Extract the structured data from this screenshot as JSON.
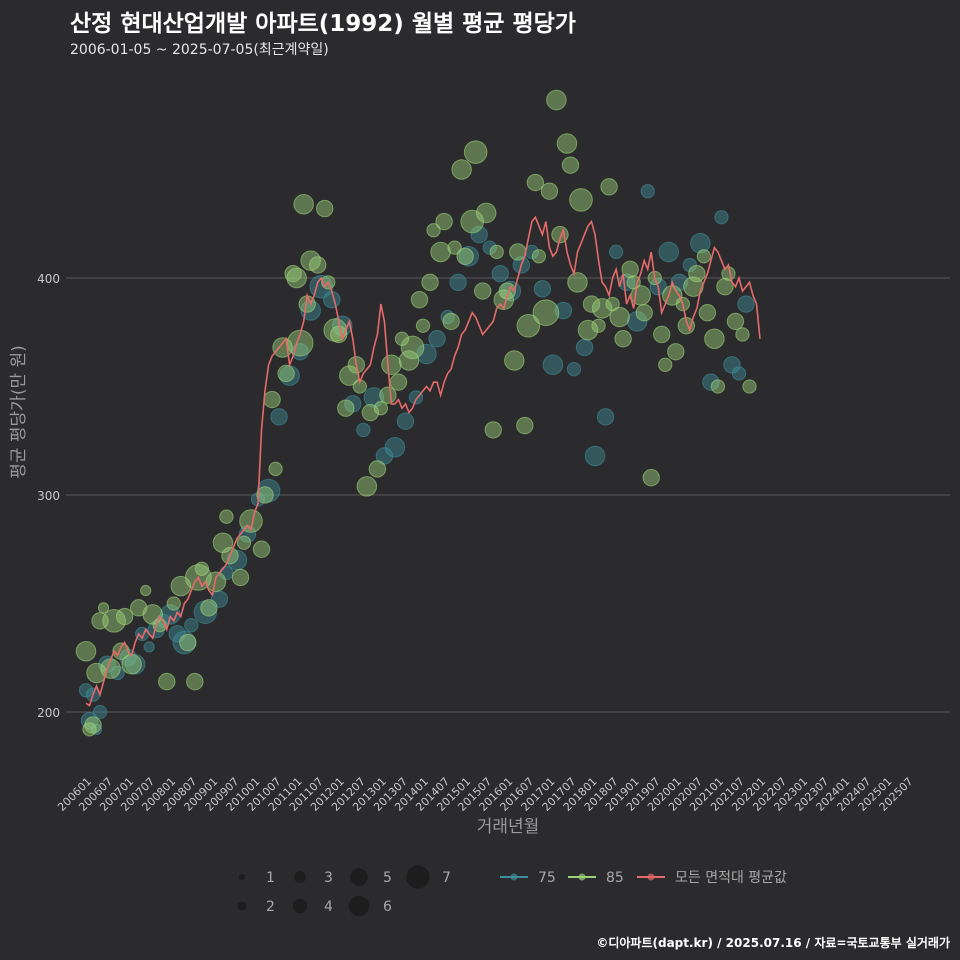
{
  "title": "산정 현대산업개발 아파트(1992) 월별 평균 평당가",
  "subtitle": "2006-01-05 ~ 2025-07-05(최근계약일)",
  "footer": "©디아파트(dapt.kr) / 2025.07.16 / 자료=국토교통부 실거래가",
  "colors": {
    "background": "#2b2b2d",
    "grid": "#5a5a5a",
    "series_75": "#3d8e9a",
    "series_85": "#9ed27a",
    "average": "#e56a6a"
  },
  "chart_data": {
    "type": "scatter",
    "xlabel": "거래년월",
    "ylabel": "평균 평당가(만 원)",
    "ylim": [
      180,
      490
    ],
    "yticks": [
      200,
      300,
      400
    ],
    "xlim_months": [
      "2006-01",
      "2025-07"
    ],
    "xticks": [
      "200601",
      "200607",
      "200701",
      "200707",
      "200801",
      "200807",
      "200901",
      "200907",
      "201001",
      "201007",
      "201101",
      "201107",
      "201201",
      "201207",
      "201301",
      "201307",
      "201401",
      "201407",
      "201501",
      "201507",
      "201601",
      "201607",
      "201701",
      "201707",
      "201801",
      "201807",
      "201901",
      "201907",
      "202001",
      "202007",
      "202101",
      "202107",
      "202201",
      "202207",
      "202301",
      "202307",
      "202401",
      "202407",
      "202501",
      "202507"
    ],
    "size_legend": [
      "1",
      "2",
      "3",
      "4",
      "5",
      "6",
      "7"
    ],
    "series": [
      {
        "name": "75",
        "color": "#3d8e9a",
        "points": [
          [
            0,
            210,
            3
          ],
          [
            1,
            196,
            4
          ],
          [
            2,
            208,
            3
          ],
          [
            3,
            192,
            2
          ],
          [
            4,
            200,
            3
          ],
          [
            6,
            222,
            4
          ],
          [
            9,
            218,
            3
          ],
          [
            12,
            225,
            4
          ],
          [
            14,
            222,
            5
          ],
          [
            16,
            236,
            3
          ],
          [
            18,
            230,
            2
          ],
          [
            20,
            238,
            4
          ],
          [
            22,
            242,
            3
          ],
          [
            24,
            245,
            5
          ],
          [
            26,
            236,
            4
          ],
          [
            28,
            232,
            6
          ],
          [
            30,
            240,
            3
          ],
          [
            34,
            246,
            6
          ],
          [
            38,
            252,
            4
          ],
          [
            40,
            264,
            3
          ],
          [
            43,
            270,
            5
          ],
          [
            46,
            282,
            4
          ],
          [
            49,
            298,
            3
          ],
          [
            52,
            302,
            6
          ],
          [
            55,
            336,
            4
          ],
          [
            58,
            355,
            5
          ],
          [
            61,
            366,
            4
          ],
          [
            64,
            385,
            5
          ],
          [
            67,
            396,
            6
          ],
          [
            70,
            390,
            4
          ],
          [
            73,
            378,
            5
          ],
          [
            76,
            342,
            4
          ],
          [
            79,
            330,
            3
          ],
          [
            82,
            345,
            5
          ],
          [
            85,
            318,
            4
          ],
          [
            88,
            322,
            5
          ],
          [
            91,
            334,
            4
          ],
          [
            94,
            345,
            3
          ],
          [
            97,
            365,
            5
          ],
          [
            100,
            372,
            4
          ],
          [
            103,
            382,
            3
          ],
          [
            106,
            398,
            4
          ],
          [
            109,
            410,
            5
          ],
          [
            112,
            420,
            4
          ],
          [
            115,
            414,
            3
          ],
          [
            118,
            402,
            4
          ],
          [
            121,
            394,
            5
          ],
          [
            124,
            406,
            4
          ],
          [
            127,
            412,
            3
          ],
          [
            130,
            395,
            4
          ],
          [
            133,
            360,
            5
          ],
          [
            136,
            385,
            4
          ],
          [
            139,
            358,
            3
          ],
          [
            142,
            368,
            4
          ],
          [
            145,
            318,
            5
          ],
          [
            148,
            336,
            4
          ],
          [
            151,
            412,
            3
          ],
          [
            154,
            398,
            4
          ],
          [
            157,
            380,
            5
          ],
          [
            160,
            440,
            3
          ],
          [
            163,
            396,
            4
          ],
          [
            166,
            412,
            5
          ],
          [
            169,
            398,
            4
          ],
          [
            172,
            406,
            3
          ],
          [
            175,
            416,
            5
          ],
          [
            178,
            352,
            4
          ],
          [
            181,
            428,
            3
          ],
          [
            184,
            360,
            4
          ],
          [
            186,
            356,
            3
          ],
          [
            188,
            388,
            4
          ]
        ]
      },
      {
        "name": "85",
        "color": "#9ed27a",
        "points": [
          [
            0,
            228,
            5
          ],
          [
            1,
            192,
            3
          ],
          [
            2,
            194,
            4
          ],
          [
            3,
            218,
            5
          ],
          [
            4,
            242,
            4
          ],
          [
            5,
            248,
            2
          ],
          [
            7,
            220,
            5
          ],
          [
            8,
            242,
            6
          ],
          [
            10,
            228,
            4
          ],
          [
            11,
            244,
            4
          ],
          [
            13,
            222,
            5
          ],
          [
            15,
            248,
            4
          ],
          [
            17,
            256,
            2
          ],
          [
            19,
            245,
            5
          ],
          [
            21,
            240,
            3
          ],
          [
            23,
            214,
            4
          ],
          [
            25,
            250,
            3
          ],
          [
            27,
            258,
            5
          ],
          [
            29,
            232,
            4
          ],
          [
            31,
            214,
            4
          ],
          [
            32,
            262,
            7
          ],
          [
            33,
            266,
            3
          ],
          [
            35,
            248,
            4
          ],
          [
            37,
            260,
            5
          ],
          [
            39,
            278,
            5
          ],
          [
            40,
            290,
            3
          ],
          [
            41,
            272,
            4
          ],
          [
            44,
            262,
            4
          ],
          [
            45,
            278,
            3
          ],
          [
            47,
            288,
            6
          ],
          [
            50,
            275,
            4
          ],
          [
            51,
            300,
            4
          ],
          [
            53,
            344,
            4
          ],
          [
            54,
            312,
            3
          ],
          [
            56,
            368,
            5
          ],
          [
            57,
            356,
            4
          ],
          [
            59,
            402,
            4
          ],
          [
            60,
            400,
            5
          ],
          [
            61,
            370,
            7
          ],
          [
            62,
            434,
            5
          ],
          [
            63,
            388,
            4
          ],
          [
            64,
            408,
            5
          ],
          [
            66,
            406,
            4
          ],
          [
            68,
            432,
            4
          ],
          [
            69,
            398,
            3
          ],
          [
            71,
            376,
            6
          ],
          [
            72,
            374,
            4
          ],
          [
            74,
            340,
            4
          ],
          [
            75,
            355,
            5
          ],
          [
            77,
            360,
            4
          ],
          [
            78,
            350,
            3
          ],
          [
            80,
            304,
            5
          ],
          [
            81,
            338,
            4
          ],
          [
            83,
            312,
            4
          ],
          [
            84,
            340,
            3
          ],
          [
            86,
            346,
            4
          ],
          [
            87,
            360,
            5
          ],
          [
            89,
            352,
            4
          ],
          [
            90,
            372,
            3
          ],
          [
            92,
            362,
            5
          ],
          [
            93,
            368,
            6
          ],
          [
            95,
            390,
            4
          ],
          [
            96,
            378,
            3
          ],
          [
            98,
            398,
            4
          ],
          [
            99,
            422,
            3
          ],
          [
            101,
            412,
            5
          ],
          [
            102,
            426,
            4
          ],
          [
            104,
            380,
            4
          ],
          [
            105,
            414,
            3
          ],
          [
            107,
            450,
            5
          ],
          [
            108,
            410,
            4
          ],
          [
            110,
            426,
            6
          ],
          [
            111,
            458,
            6
          ],
          [
            113,
            394,
            4
          ],
          [
            114,
            430,
            5
          ],
          [
            116,
            330,
            4
          ],
          [
            117,
            412,
            3
          ],
          [
            119,
            390,
            5
          ],
          [
            120,
            394,
            4
          ],
          [
            122,
            362,
            5
          ],
          [
            123,
            412,
            4
          ],
          [
            125,
            332,
            4
          ],
          [
            126,
            378,
            6
          ],
          [
            128,
            444,
            4
          ],
          [
            129,
            410,
            3
          ],
          [
            131,
            384,
            7
          ],
          [
            132,
            440,
            4
          ],
          [
            134,
            482,
            5
          ],
          [
            135,
            420,
            4
          ],
          [
            137,
            462,
            5
          ],
          [
            138,
            452,
            4
          ],
          [
            140,
            398,
            5
          ],
          [
            141,
            436,
            6
          ],
          [
            143,
            376,
            5
          ],
          [
            144,
            388,
            4
          ],
          [
            146,
            378,
            3
          ],
          [
            147,
            386,
            5
          ],
          [
            149,
            442,
            4
          ],
          [
            150,
            388,
            3
          ],
          [
            152,
            382,
            5
          ],
          [
            153,
            372,
            4
          ],
          [
            155,
            404,
            4
          ],
          [
            156,
            398,
            3
          ],
          [
            158,
            392,
            5
          ],
          [
            159,
            384,
            4
          ],
          [
            161,
            308,
            4
          ],
          [
            162,
            400,
            3
          ],
          [
            164,
            374,
            4
          ],
          [
            165,
            360,
            3
          ],
          [
            167,
            392,
            5
          ],
          [
            168,
            366,
            4
          ],
          [
            170,
            388,
            3
          ],
          [
            171,
            378,
            4
          ],
          [
            173,
            396,
            5
          ],
          [
            174,
            402,
            4
          ],
          [
            176,
            410,
            3
          ],
          [
            177,
            384,
            4
          ],
          [
            179,
            372,
            5
          ],
          [
            180,
            350,
            3
          ],
          [
            182,
            396,
            4
          ],
          [
            183,
            402,
            3
          ],
          [
            185,
            380,
            4
          ],
          [
            187,
            374,
            3
          ],
          [
            189,
            350,
            3
          ]
        ]
      },
      {
        "name": "모든 면적대 평균값",
        "color": "#e56a6a",
        "type": "line",
        "values": [
          204,
          203,
          208,
          212,
          208,
          214,
          220,
          224,
          228,
          226,
          230,
          232,
          228,
          226,
          232,
          236,
          234,
          238,
          236,
          234,
          240,
          244,
          242,
          238,
          244,
          242,
          246,
          244,
          250,
          252,
          256,
          260,
          262,
          258,
          260,
          256,
          254,
          262,
          264,
          266,
          268,
          272,
          276,
          280,
          282,
          284,
          286,
          284,
          292,
          296,
          330,
          348,
          360,
          364,
          366,
          368,
          370,
          372,
          360,
          364,
          370,
          374,
          380,
          392,
          388,
          392,
          398,
          400,
          396,
          398,
          394,
          388,
          380,
          372,
          376,
          380,
          372,
          360,
          352,
          356,
          358,
          360,
          368,
          374,
          388,
          380,
          360,
          342,
          342,
          344,
          340,
          342,
          338,
          340,
          344,
          346,
          348,
          350,
          348,
          352,
          352,
          346,
          352,
          356,
          358,
          364,
          368,
          374,
          376,
          380,
          384,
          382,
          378,
          374,
          376,
          378,
          380,
          386,
          388,
          386,
          392,
          396,
          394,
          400,
          406,
          410,
          418,
          426,
          428,
          424,
          420,
          426,
          414,
          410,
          412,
          418,
          422,
          412,
          406,
          402,
          412,
          416,
          420,
          424,
          426,
          420,
          408,
          398,
          396,
          392,
          400,
          404,
          396,
          402,
          388,
          392,
          386,
          398,
          402,
          408,
          404,
          412,
          400,
          396,
          384,
          388,
          392,
          398,
          394,
          392,
          388,
          380,
          376,
          382,
          386,
          394,
          398,
          402,
          408,
          414,
          412,
          408,
          404,
          406,
          398,
          396,
          400,
          394,
          396,
          398,
          392,
          388,
          372
        ]
      }
    ]
  },
  "legend": {
    "sizes": [
      "1",
      "2",
      "3",
      "4",
      "5",
      "6",
      "7"
    ],
    "series": [
      "75",
      "85",
      "모든 면적대 평균값"
    ]
  }
}
